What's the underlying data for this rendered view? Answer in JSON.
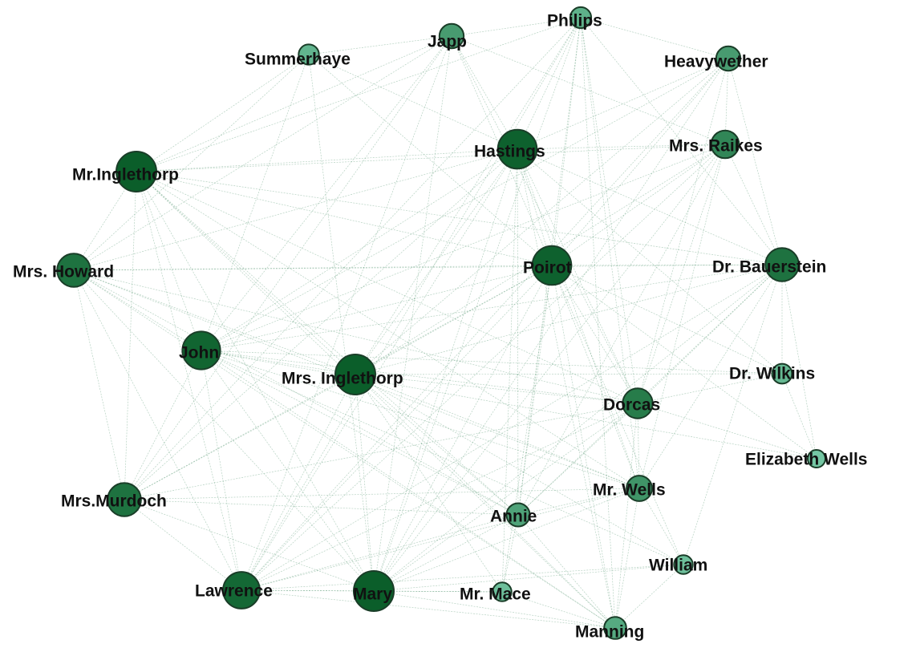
{
  "colors": {
    "edge": "#2e7d4f",
    "level_high": "#0b5e2a",
    "level_mid": "#2a7f4e",
    "level_low": "#74c6a3",
    "stroke": "#1a3d28"
  },
  "nodes": [
    {
      "id": "summerhaye",
      "label": "Summerhaye",
      "degree": 0.12
    },
    {
      "id": "japp",
      "label": "Japp",
      "degree": 0.3
    },
    {
      "id": "philips",
      "label": "Philips",
      "degree": 0.15
    },
    {
      "id": "heavywether",
      "label": "Heavywether",
      "degree": 0.3
    },
    {
      "id": "mrs_raikes",
      "label": "Mrs. Raikes",
      "degree": 0.45
    },
    {
      "id": "hastings",
      "label": "Hastings",
      "degree": 0.95
    },
    {
      "id": "mr_inglethorp",
      "label": "Mr.Inglethorp",
      "degree": 1.0
    },
    {
      "id": "mrs_howard",
      "label": "Mrs. Howard",
      "degree": 0.7
    },
    {
      "id": "poirot",
      "label": "Poirot",
      "degree": 0.95
    },
    {
      "id": "dr_bauerstein",
      "label": "Dr. Bauerstein",
      "degree": 0.7
    },
    {
      "id": "john",
      "label": "John",
      "degree": 0.9
    },
    {
      "id": "mrs_inglethorp",
      "label": "Mrs. Inglethorp",
      "degree": 1.0
    },
    {
      "id": "dr_wilkins",
      "label": "Dr. Wilkins",
      "degree": 0.1
    },
    {
      "id": "dorcas",
      "label": "Dorcas",
      "degree": 0.55
    },
    {
      "id": "elizabeth_wells",
      "label": "Elizabeth Wells",
      "degree": 0.0
    },
    {
      "id": "mrs_murdoch",
      "label": "Mrs.Murdoch",
      "degree": 0.7
    },
    {
      "id": "mr_wells",
      "label": "Mr. Wells",
      "degree": 0.35
    },
    {
      "id": "annie",
      "label": "Annie",
      "degree": 0.25
    },
    {
      "id": "william",
      "label": "William",
      "degree": 0.05
    },
    {
      "id": "lawrence",
      "label": "Lawrence",
      "degree": 0.85
    },
    {
      "id": "mary",
      "label": "Mary",
      "degree": 1.0
    },
    {
      "id": "mr_mace",
      "label": "Mr. Mace",
      "degree": 0.05
    },
    {
      "id": "manning",
      "label": "Manning",
      "degree": 0.2
    }
  ],
  "edges": [
    [
      "summerhaye",
      "mr_inglethorp"
    ],
    [
      "summerhaye",
      "mrs_howard"
    ],
    [
      "summerhaye",
      "hastings"
    ],
    [
      "summerhaye",
      "poirot"
    ],
    [
      "summerhaye",
      "mary"
    ],
    [
      "summerhaye",
      "john"
    ],
    [
      "summerhaye",
      "japp"
    ],
    [
      "japp",
      "hastings"
    ],
    [
      "japp",
      "poirot"
    ],
    [
      "japp",
      "mr_inglethorp"
    ],
    [
      "japp",
      "mrs_howard"
    ],
    [
      "japp",
      "john"
    ],
    [
      "japp",
      "lawrence"
    ],
    [
      "japp",
      "mary"
    ],
    [
      "japp",
      "dorcas"
    ],
    [
      "japp",
      "mrs_raikes"
    ],
    [
      "japp",
      "philips"
    ],
    [
      "japp",
      "mrs_murdoch"
    ],
    [
      "philips",
      "hastings"
    ],
    [
      "philips",
      "poirot"
    ],
    [
      "philips",
      "mary"
    ],
    [
      "philips",
      "lawrence"
    ],
    [
      "philips",
      "mrs_inglethorp"
    ],
    [
      "philips",
      "mr_wells"
    ],
    [
      "philips",
      "dorcas"
    ],
    [
      "philips",
      "mr_inglethorp"
    ],
    [
      "philips",
      "heavywether"
    ],
    [
      "philips",
      "dr_bauerstein"
    ],
    [
      "philips",
      "annie"
    ],
    [
      "philips",
      "manning"
    ],
    [
      "philips",
      "mrs_murdoch"
    ],
    [
      "heavywether",
      "hastings"
    ],
    [
      "heavywether",
      "poirot"
    ],
    [
      "heavywether",
      "mary"
    ],
    [
      "heavywether",
      "lawrence"
    ],
    [
      "heavywether",
      "mrs_raikes"
    ],
    [
      "heavywether",
      "dr_bauerstein"
    ],
    [
      "heavywether",
      "john"
    ],
    [
      "heavywether",
      "dorcas"
    ],
    [
      "heavywether",
      "mrs_inglethorp"
    ],
    [
      "mrs_raikes",
      "hastings"
    ],
    [
      "mrs_raikes",
      "poirot"
    ],
    [
      "mrs_raikes",
      "john"
    ],
    [
      "mrs_raikes",
      "mr_inglethorp"
    ],
    [
      "mrs_raikes",
      "mary"
    ],
    [
      "mrs_raikes",
      "lawrence"
    ],
    [
      "mrs_raikes",
      "dr_bauerstein"
    ],
    [
      "mrs_raikes",
      "dorcas"
    ],
    [
      "mrs_raikes",
      "mrs_inglethorp"
    ],
    [
      "mrs_raikes",
      "annie"
    ],
    [
      "mrs_raikes",
      "mr_wells"
    ],
    [
      "hastings",
      "poirot"
    ],
    [
      "hastings",
      "mr_inglethorp"
    ],
    [
      "hastings",
      "mrs_howard"
    ],
    [
      "hastings",
      "john"
    ],
    [
      "hastings",
      "mrs_inglethorp"
    ],
    [
      "hastings",
      "mary"
    ],
    [
      "hastings",
      "lawrence"
    ],
    [
      "hastings",
      "dorcas"
    ],
    [
      "hastings",
      "dr_bauerstein"
    ],
    [
      "hastings",
      "annie"
    ],
    [
      "hastings",
      "mr_wells"
    ],
    [
      "hastings",
      "mrs_murdoch"
    ],
    [
      "hastings",
      "manning"
    ],
    [
      "hastings",
      "dr_wilkins"
    ],
    [
      "hastings",
      "mr_mace"
    ],
    [
      "mr_inglethorp",
      "poirot"
    ],
    [
      "mr_inglethorp",
      "mrs_howard"
    ],
    [
      "mr_inglethorp",
      "john"
    ],
    [
      "mr_inglethorp",
      "mrs_inglethorp"
    ],
    [
      "mr_inglethorp",
      "mary"
    ],
    [
      "mr_inglethorp",
      "lawrence"
    ],
    [
      "mr_inglethorp",
      "dorcas"
    ],
    [
      "mr_inglethorp",
      "dr_bauerstein"
    ],
    [
      "mr_inglethorp",
      "mrs_murdoch"
    ],
    [
      "mr_inglethorp",
      "annie"
    ],
    [
      "mr_inglethorp",
      "mr_wells"
    ],
    [
      "mr_inglethorp",
      "manning"
    ],
    [
      "mrs_howard",
      "poirot"
    ],
    [
      "mrs_howard",
      "john"
    ],
    [
      "mrs_howard",
      "mrs_inglethorp"
    ],
    [
      "mrs_howard",
      "mary"
    ],
    [
      "mrs_howard",
      "lawrence"
    ],
    [
      "mrs_howard",
      "dorcas"
    ],
    [
      "mrs_howard",
      "mrs_murdoch"
    ],
    [
      "mrs_howard",
      "dr_bauerstein"
    ],
    [
      "mrs_howard",
      "annie"
    ],
    [
      "mrs_howard",
      "mr_wells"
    ],
    [
      "mrs_howard",
      "manning"
    ],
    [
      "poirot",
      "dr_bauerstein"
    ],
    [
      "poirot",
      "john"
    ],
    [
      "poirot",
      "mrs_inglethorp"
    ],
    [
      "poirot",
      "mary"
    ],
    [
      "poirot",
      "lawrence"
    ],
    [
      "poirot",
      "dorcas"
    ],
    [
      "poirot",
      "mrs_murdoch"
    ],
    [
      "poirot",
      "annie"
    ],
    [
      "poirot",
      "mr_wells"
    ],
    [
      "poirot",
      "william"
    ],
    [
      "poirot",
      "manning"
    ],
    [
      "poirot",
      "dr_wilkins"
    ],
    [
      "poirot",
      "mr_mace"
    ],
    [
      "poirot",
      "elizabeth_wells"
    ],
    [
      "dr_bauerstein",
      "john"
    ],
    [
      "dr_bauerstein",
      "mrs_inglethorp"
    ],
    [
      "dr_bauerstein",
      "mary"
    ],
    [
      "dr_bauerstein",
      "lawrence"
    ],
    [
      "dr_bauerstein",
      "dorcas"
    ],
    [
      "dr_bauerstein",
      "dr_wilkins"
    ],
    [
      "dr_bauerstein",
      "elizabeth_wells"
    ],
    [
      "dr_bauerstein",
      "mr_wells"
    ],
    [
      "dr_bauerstein",
      "annie"
    ],
    [
      "dr_bauerstein",
      "william"
    ],
    [
      "john",
      "mrs_inglethorp"
    ],
    [
      "john",
      "mary"
    ],
    [
      "john",
      "lawrence"
    ],
    [
      "john",
      "dorcas"
    ],
    [
      "john",
      "mrs_murdoch"
    ],
    [
      "john",
      "annie"
    ],
    [
      "john",
      "mr_wells"
    ],
    [
      "john",
      "manning"
    ],
    [
      "john",
      "dr_wilkins"
    ],
    [
      "john",
      "elizabeth_wells"
    ],
    [
      "john",
      "william"
    ],
    [
      "mrs_inglethorp",
      "mary"
    ],
    [
      "mrs_inglethorp",
      "lawrence"
    ],
    [
      "mrs_inglethorp",
      "dorcas"
    ],
    [
      "mrs_inglethorp",
      "mrs_murdoch"
    ],
    [
      "mrs_inglethorp",
      "annie"
    ],
    [
      "mrs_inglethorp",
      "mr_wells"
    ],
    [
      "mrs_inglethorp",
      "manning"
    ],
    [
      "mrs_inglethorp",
      "william"
    ],
    [
      "mrs_inglethorp",
      "mr_mace"
    ],
    [
      "mrs_inglethorp",
      "dr_wilkins"
    ],
    [
      "dorcas",
      "mary"
    ],
    [
      "dorcas",
      "lawrence"
    ],
    [
      "dorcas",
      "annie"
    ],
    [
      "dorcas",
      "mr_wells"
    ],
    [
      "dorcas",
      "manning"
    ],
    [
      "dorcas",
      "dr_wilkins"
    ],
    [
      "dorcas",
      "mrs_murdoch"
    ],
    [
      "dorcas",
      "elizabeth_wells"
    ],
    [
      "mrs_murdoch",
      "mary"
    ],
    [
      "mrs_murdoch",
      "lawrence"
    ],
    [
      "mrs_murdoch",
      "annie"
    ],
    [
      "mrs_murdoch",
      "mr_wells"
    ],
    [
      "mr_wells",
      "mary"
    ],
    [
      "mr_wells",
      "lawrence"
    ],
    [
      "mr_wells",
      "annie"
    ],
    [
      "mr_wells",
      "manning"
    ],
    [
      "mr_wells",
      "william"
    ],
    [
      "annie",
      "mary"
    ],
    [
      "annie",
      "lawrence"
    ],
    [
      "annie",
      "manning"
    ],
    [
      "annie",
      "mr_mace"
    ],
    [
      "william",
      "mary"
    ],
    [
      "william",
      "lawrence"
    ],
    [
      "william",
      "manning"
    ],
    [
      "lawrence",
      "mary"
    ],
    [
      "lawrence",
      "manning"
    ],
    [
      "lawrence",
      "mr_mace"
    ],
    [
      "mary",
      "mr_mace"
    ],
    [
      "mary",
      "manning"
    ],
    [
      "mr_mace",
      "manning"
    ],
    [
      "dr_wilkins",
      "elizabeth_wells"
    ]
  ]
}
